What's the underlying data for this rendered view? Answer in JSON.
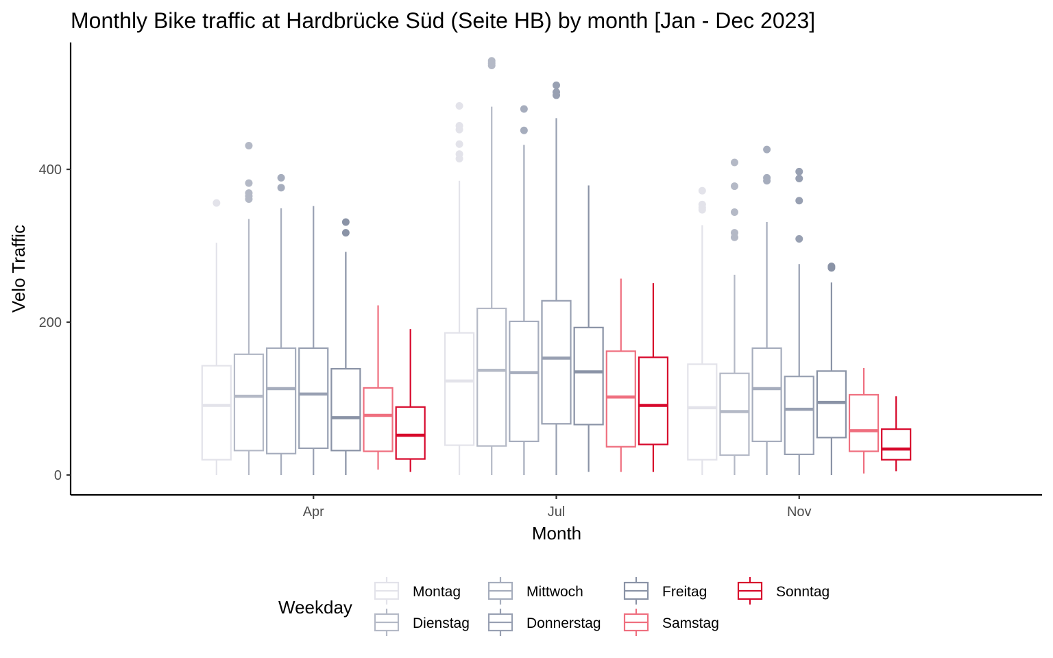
{
  "chart_data": {
    "type": "box",
    "title": "Monthly Bike traffic at Hardbrücke Süd (Seite HB) by month [Jan - Dec 2023]",
    "xlabel": "Month",
    "ylabel": "Velo Traffic",
    "categories": [
      "Apr",
      "Jul",
      "Nov"
    ],
    "y_ticks": [
      0,
      200,
      400
    ],
    "ylim": [
      -26,
      566
    ],
    "grid": false,
    "legend": {
      "title": "Weekday",
      "position": "bottom"
    },
    "series": [
      {
        "name": "Montag",
        "color": "#e3e3ea",
        "boxes": [
          {
            "min": 0,
            "q1": 20,
            "median": 91,
            "q3": 143,
            "max": 304,
            "outliers": [
              356
            ]
          },
          {
            "min": 0,
            "q1": 39,
            "median": 123,
            "q3": 186,
            "max": 385,
            "outliers": [
              414,
              420,
              433,
              452,
              457,
              483
            ]
          },
          {
            "min": 0,
            "q1": 20,
            "median": 88,
            "q3": 145,
            "max": 327,
            "outliers": [
              347,
              350,
              354,
              372
            ]
          }
        ]
      },
      {
        "name": "Dienstag",
        "color": "#b4b9c6",
        "boxes": [
          {
            "min": 0,
            "q1": 32,
            "median": 103,
            "q3": 158,
            "max": 335,
            "outliers": [
              361,
              365,
              369,
              382,
              431
            ]
          },
          {
            "min": 0,
            "q1": 38,
            "median": 137,
            "q3": 218,
            "max": 482,
            "outliers": [
              536,
              539,
              542
            ]
          },
          {
            "min": 0,
            "q1": 26,
            "median": 83,
            "q3": 133,
            "max": 262,
            "outliers": [
              311,
              317,
              344,
              378,
              409
            ]
          }
        ]
      },
      {
        "name": "Mittwoch",
        "color": "#a6adbd",
        "boxes": [
          {
            "min": 0,
            "q1": 28,
            "median": 113,
            "q3": 166,
            "max": 349,
            "outliers": [
              376,
              389
            ]
          },
          {
            "min": 0,
            "q1": 44,
            "median": 134,
            "q3": 201,
            "max": 432,
            "outliers": [
              451,
              479
            ]
          },
          {
            "min": 0,
            "q1": 44,
            "median": 113,
            "q3": 166,
            "max": 331,
            "outliers": [
              385,
              389,
              426
            ]
          }
        ]
      },
      {
        "name": "Donnerstag",
        "color": "#98a0b2",
        "boxes": [
          {
            "min": 0,
            "q1": 35,
            "median": 106,
            "q3": 166,
            "max": 352,
            "outliers": []
          },
          {
            "min": 0,
            "q1": 67,
            "median": 153,
            "q3": 228,
            "max": 467,
            "outliers": [
              497,
              501,
              510
            ]
          },
          {
            "min": 0,
            "q1": 27,
            "median": 86,
            "q3": 129,
            "max": 276,
            "outliers": [
              309,
              359,
              388,
              397
            ]
          }
        ]
      },
      {
        "name": "Freitag",
        "color": "#8a93a6",
        "boxes": [
          {
            "min": 0,
            "q1": 32,
            "median": 75,
            "q3": 139,
            "max": 292,
            "outliers": [
              317,
              331
            ]
          },
          {
            "min": 4,
            "q1": 66,
            "median": 135,
            "q3": 193,
            "max": 379,
            "outliers": []
          },
          {
            "min": 0,
            "q1": 49,
            "median": 95,
            "q3": 136,
            "max": 252,
            "outliers": [
              271,
              273
            ]
          }
        ]
      },
      {
        "name": "Samstag",
        "color": "#ef6f7f",
        "boxes": [
          {
            "min": 7,
            "q1": 31,
            "median": 78,
            "q3": 114,
            "max": 222,
            "outliers": []
          },
          {
            "min": 4,
            "q1": 37,
            "median": 102,
            "q3": 162,
            "max": 257,
            "outliers": []
          },
          {
            "min": 2,
            "q1": 31,
            "median": 58,
            "q3": 105,
            "max": 140,
            "outliers": []
          }
        ]
      },
      {
        "name": "Sonntag",
        "color": "#d7082b",
        "boxes": [
          {
            "min": 4,
            "q1": 21,
            "median": 52,
            "q3": 89,
            "max": 191,
            "outliers": []
          },
          {
            "min": 4,
            "q1": 40,
            "median": 91,
            "q3": 154,
            "max": 251,
            "outliers": []
          },
          {
            "min": 5,
            "q1": 20,
            "median": 34,
            "q3": 60,
            "max": 103,
            "outliers": []
          }
        ]
      }
    ]
  }
}
